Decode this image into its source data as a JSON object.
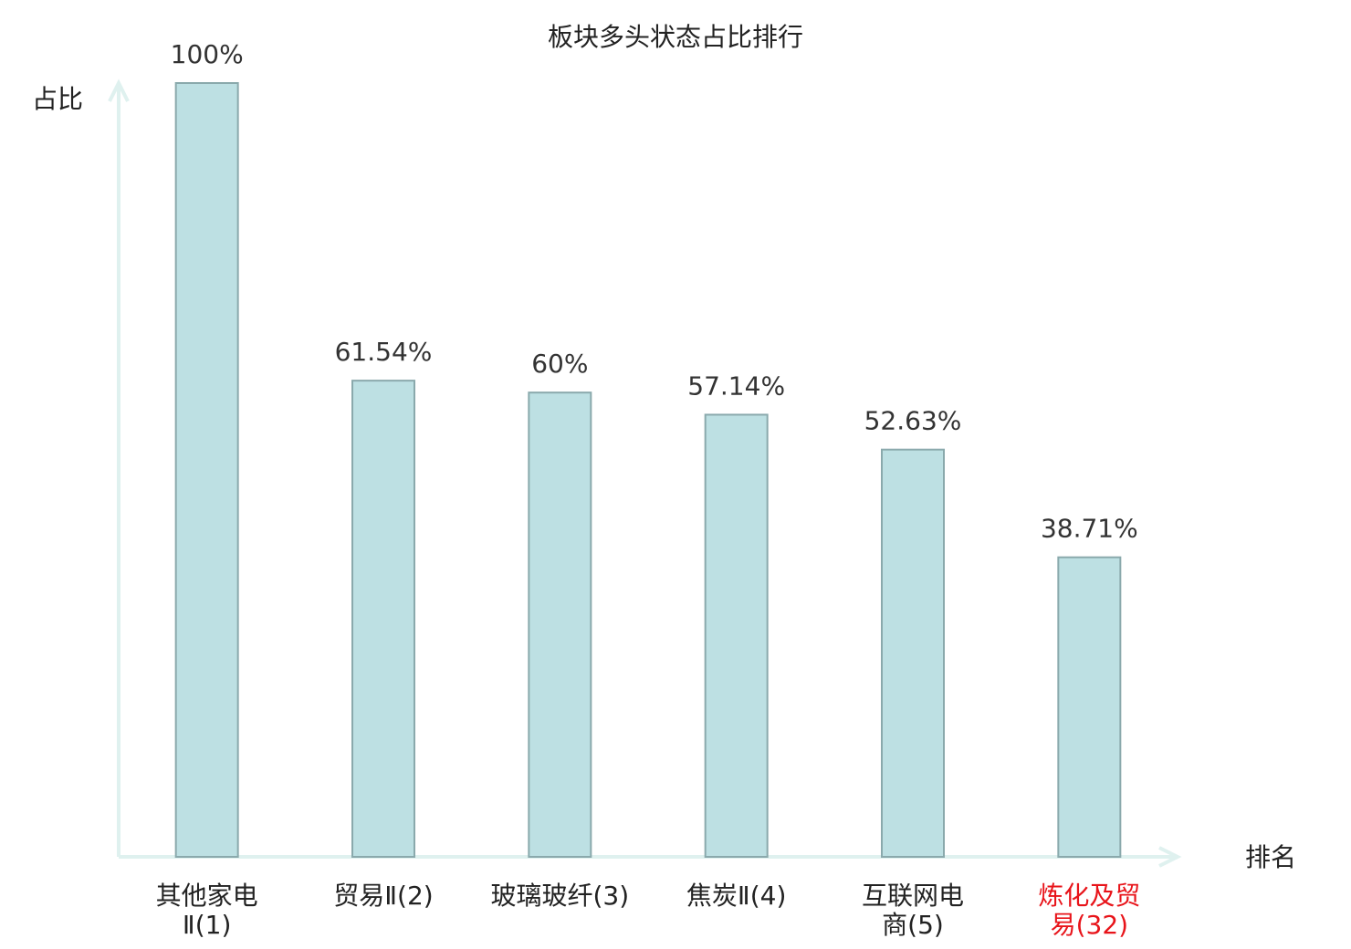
{
  "chart_data": {
    "type": "bar",
    "title": "板块多头状态占比排行",
    "xlabel": "排名",
    "ylabel": "占比",
    "categories": [
      "其他家电\nⅡ(1)",
      "贸易Ⅱ(2)",
      "玻璃玻纤(3)",
      "焦炭Ⅱ(4)",
      "互联网电\n商(5)",
      "炼化及贸\n易(32)"
    ],
    "category_colors": [
      "#222222",
      "#222222",
      "#222222",
      "#222222",
      "#222222",
      "#e8141a"
    ],
    "values": [
      100,
      61.54,
      60,
      57.14,
      52.63,
      38.71
    ],
    "value_labels": [
      "100%",
      "61.54%",
      "60%",
      "57.14%",
      "52.63%",
      "38.71%"
    ],
    "color": "#bde0e3",
    "edge_color": "#8aa9ac",
    "axis_color": "#dff1ef",
    "ylim": [
      0,
      100
    ]
  }
}
